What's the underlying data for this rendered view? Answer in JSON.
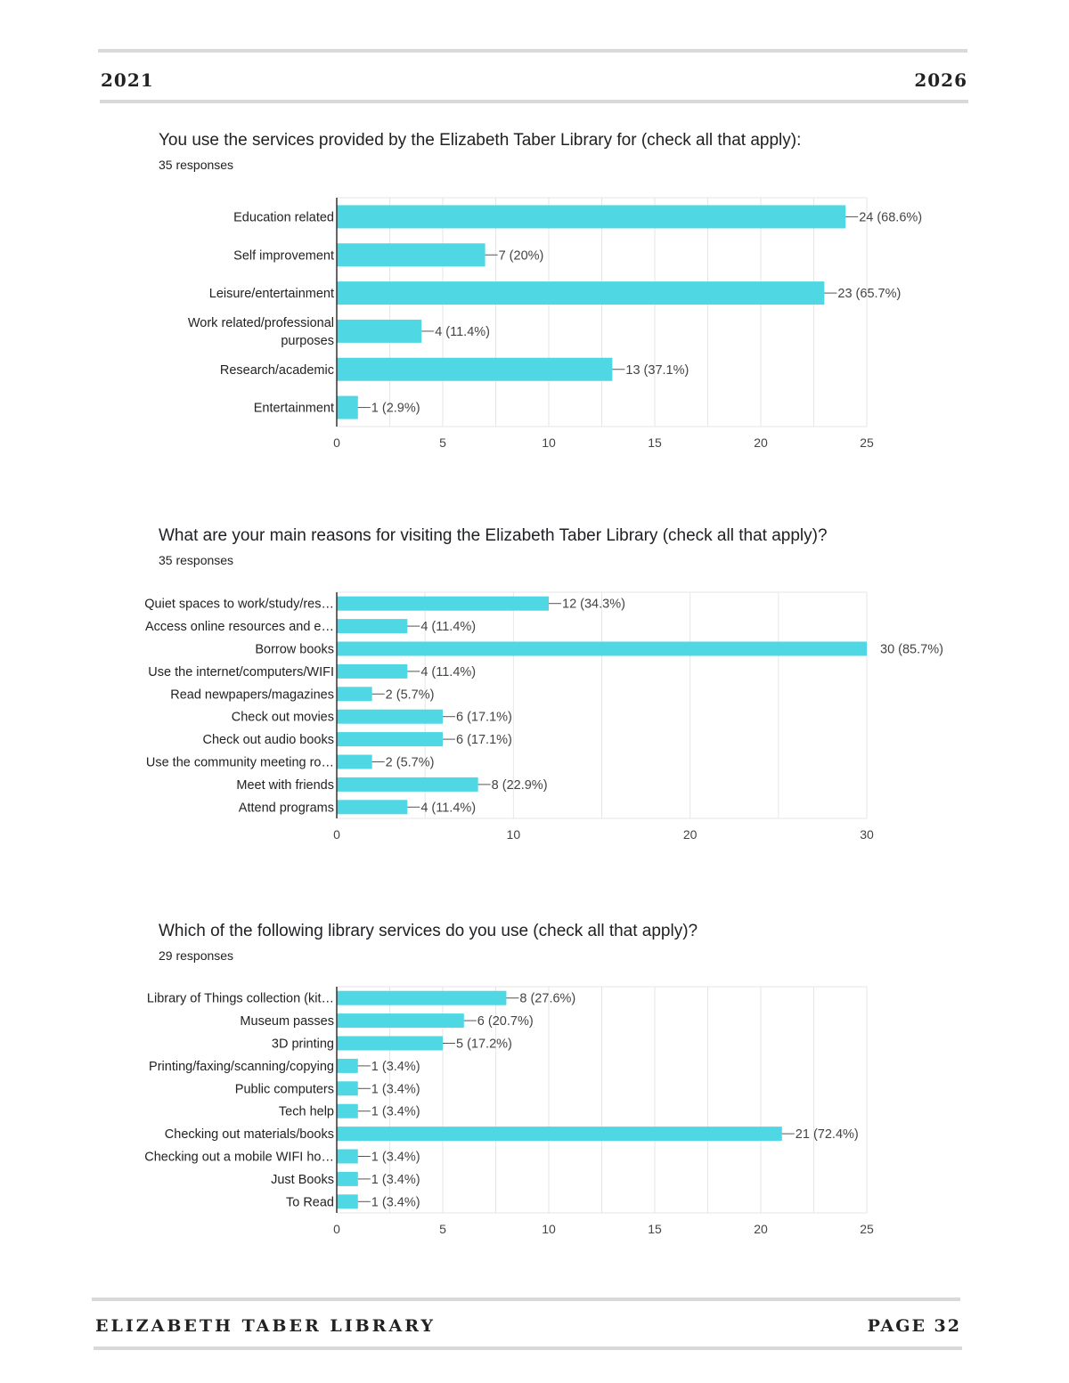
{
  "header": {
    "year_left": "2021",
    "year_right": "2026"
  },
  "footer": {
    "library": "ELIZABETH TABER LIBRARY",
    "page": "PAGE 32"
  },
  "colors": {
    "bar": "#4fd8e3",
    "grid": "#e6e6e6",
    "axis": "#333333",
    "rule": "#d9d9d9"
  },
  "questions": [
    {
      "title": "You use the services provided by the Elizabeth Taber Library for (check all that apply):",
      "responses": "35 responses"
    },
    {
      "title": "What are your main reasons for visiting the Elizabeth Taber Library (check all that apply)?",
      "responses": "35 responses"
    },
    {
      "title": "Which of the following library services do you use (check all that apply)?",
      "responses": "29 responses"
    }
  ],
  "chart_data": [
    {
      "type": "bar",
      "orientation": "horizontal",
      "categories": [
        [
          "Education related"
        ],
        [
          "Self improvement"
        ],
        [
          "Leisure/entertainment"
        ],
        [
          "Work related/professional",
          "purposes"
        ],
        [
          "Research/academic"
        ],
        [
          "Entertainment"
        ]
      ],
      "values": [
        24,
        7,
        23,
        4,
        13,
        1
      ],
      "value_labels": [
        "24 (68.6%)",
        "7 (20%)",
        "23 (65.7%)",
        "4 (11.4%)",
        "13 (37.1%)",
        "1 (2.9%)"
      ],
      "xlim": [
        0,
        25
      ],
      "xticks": [
        0,
        5,
        10,
        15,
        20,
        25
      ],
      "grid": true
    },
    {
      "type": "bar",
      "orientation": "horizontal",
      "categories": [
        [
          "Quiet spaces to work/study/res…"
        ],
        [
          "Access online resources and e…"
        ],
        [
          "Borrow books"
        ],
        [
          "Use the internet/computers/WIFI"
        ],
        [
          "Read newpapers/magazines"
        ],
        [
          "Check out movies"
        ],
        [
          "Check out audio books"
        ],
        [
          "Use the community meeting ro…"
        ],
        [
          "Meet with friends"
        ],
        [
          "Attend programs"
        ]
      ],
      "values": [
        12,
        4,
        30,
        4,
        2,
        6,
        6,
        2,
        8,
        4
      ],
      "value_labels": [
        "12 (34.3%)",
        "4 (11.4%)",
        "30 (85.7%)",
        "4 (11.4%)",
        "2 (5.7%)",
        "6 (17.1%)",
        "6 (17.1%)",
        "2 (5.7%)",
        "8 (22.9%)",
        "4 (11.4%)"
      ],
      "xlim": [
        0,
        30
      ],
      "xticks": [
        0,
        10,
        20,
        30
      ],
      "grid": true
    },
    {
      "type": "bar",
      "orientation": "horizontal",
      "categories": [
        [
          "Library of Things collection (kit…"
        ],
        [
          "Museum passes"
        ],
        [
          "3D printing"
        ],
        [
          "Printing/faxing/scanning/copying"
        ],
        [
          "Public computers"
        ],
        [
          "Tech help"
        ],
        [
          "Checking out materials/books"
        ],
        [
          "Checking out a mobile WIFI ho…"
        ],
        [
          "Just Books"
        ],
        [
          "To Read"
        ]
      ],
      "values": [
        8,
        6,
        5,
        1,
        1,
        1,
        21,
        1,
        1,
        1
      ],
      "value_labels": [
        "8 (27.6%)",
        "6 (20.7%)",
        "5 (17.2%)",
        "1 (3.4%)",
        "1 (3.4%)",
        "1 (3.4%)",
        "21 (72.4%)",
        "1 (3.4%)",
        "1 (3.4%)",
        "1 (3.4%)"
      ],
      "xlim": [
        0,
        25
      ],
      "xticks": [
        0,
        5,
        10,
        15,
        20,
        25
      ],
      "grid": true
    }
  ]
}
